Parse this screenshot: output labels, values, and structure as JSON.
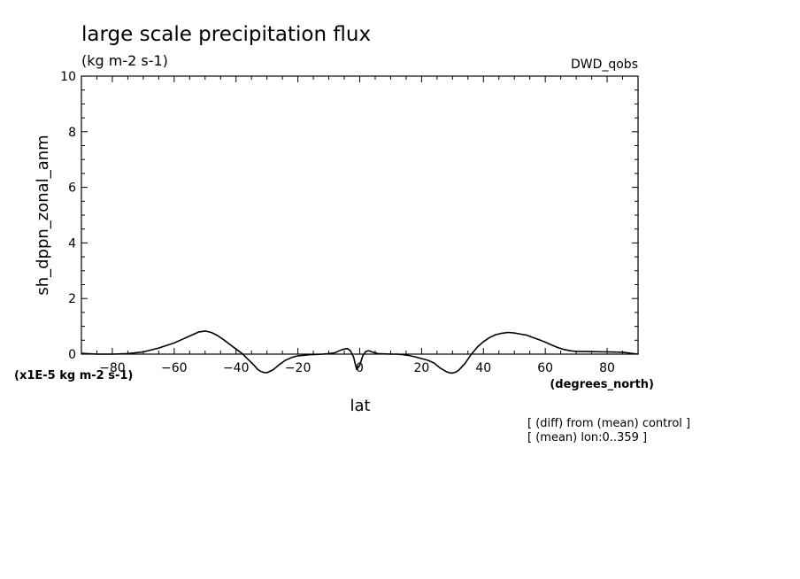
{
  "header": {
    "title": "large scale precipitation flux",
    "units": "(kg m-2 s-1)",
    "dataset": "DWD_qobs"
  },
  "axes": {
    "ylabel": "sh_dppn_zonal_anm",
    "y_scale_note": "(x1E-5 kg m-2 s-1)",
    "xlabel": "lat",
    "x_units": "(degrees_north)"
  },
  "notes": {
    "line1": "[ (diff) from (mean) control ]",
    "line2": "[ (mean) lon:0..359 ]"
  },
  "chart_data": {
    "type": "line",
    "title": "large scale precipitation flux",
    "xlabel": "lat",
    "ylabel": "sh_dppn_zonal_anm",
    "xlim": [
      -90,
      90
    ],
    "ylim": [
      0,
      10
    ],
    "x_ticks": [
      -80,
      -60,
      -40,
      -20,
      0,
      20,
      40,
      60,
      80
    ],
    "y_ticks": [
      0,
      2,
      4,
      6,
      8,
      10
    ],
    "grid": false,
    "series": [
      {
        "x": [
          -90,
          -85,
          -80,
          -75,
          -70,
          -65,
          -60,
          -57,
          -54,
          -52,
          -50,
          -48,
          -46,
          -44,
          -42,
          -40,
          -38,
          -36,
          -34,
          -33,
          -32,
          -31,
          -30,
          -28,
          -26,
          -24,
          -22,
          -20,
          -18,
          -16,
          -14,
          -12,
          -10,
          -8,
          -6,
          -5,
          -4,
          -3,
          -2,
          -1,
          0,
          1,
          2,
          3,
          4,
          5,
          6,
          8,
          10,
          12,
          14,
          16,
          18,
          20,
          22,
          24,
          26,
          28,
          29,
          30,
          31,
          32,
          34,
          36,
          38,
          40,
          42,
          44,
          46,
          48,
          50,
          52,
          54,
          56,
          58,
          60,
          62,
          64,
          66,
          68,
          70,
          75,
          80,
          85,
          90
        ],
        "y": [
          0.03,
          0.0,
          0.0,
          0.02,
          0.08,
          0.22,
          0.4,
          0.55,
          0.7,
          0.8,
          0.83,
          0.78,
          0.67,
          0.52,
          0.35,
          0.18,
          0.02,
          -0.2,
          -0.42,
          -0.55,
          -0.62,
          -0.66,
          -0.67,
          -0.56,
          -0.38,
          -0.22,
          -0.12,
          -0.06,
          -0.04,
          -0.02,
          -0.01,
          0.0,
          0.02,
          0.05,
          0.15,
          0.18,
          0.2,
          0.12,
          -0.1,
          -0.55,
          -0.4,
          -0.05,
          0.1,
          0.12,
          0.08,
          0.04,
          0.02,
          0.01,
          0.0,
          0.0,
          -0.02,
          -0.05,
          -0.1,
          -0.16,
          -0.22,
          -0.32,
          -0.5,
          -0.63,
          -0.67,
          -0.68,
          -0.65,
          -0.58,
          -0.34,
          -0.02,
          0.25,
          0.45,
          0.6,
          0.7,
          0.75,
          0.78,
          0.76,
          0.72,
          0.68,
          0.6,
          0.52,
          0.43,
          0.33,
          0.24,
          0.17,
          0.12,
          0.1,
          0.09,
          0.08,
          0.07,
          0.0
        ]
      }
    ]
  }
}
